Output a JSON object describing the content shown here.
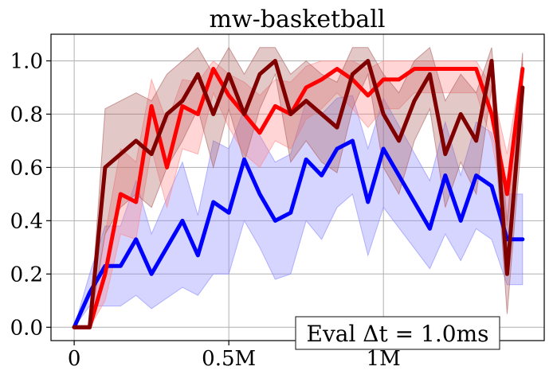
{
  "chart_data": {
    "type": "line",
    "title": "mw-basketball",
    "xlabel": "",
    "ylabel": "",
    "xlim": [
      -75000,
      1520000
    ],
    "ylim": [
      -0.05,
      1.1
    ],
    "xticks": [
      {
        "value": 0,
        "label": "0"
      },
      {
        "value": 500000,
        "label": "0.5M"
      },
      {
        "value": 1000000,
        "label": "1M"
      }
    ],
    "yticks": [
      {
        "value": 0.0,
        "label": "0.0"
      },
      {
        "value": 0.2,
        "label": "0.2"
      },
      {
        "value": 0.4,
        "label": "0.4"
      },
      {
        "value": 0.6,
        "label": "0.6"
      },
      {
        "value": 0.8,
        "label": "0.8"
      },
      {
        "value": 1.0,
        "label": "1.0"
      }
    ],
    "grid": true,
    "annotation": "Eval Δt = 1.0ms",
    "series": [
      {
        "color": "#0000ff",
        "band_color": "#8888ff",
        "x": [
          0,
          50000,
          100000,
          150000,
          200000,
          250000,
          350000,
          400000,
          450000,
          500000,
          550000,
          600000,
          650000,
          700000,
          750000,
          800000,
          850000,
          900000,
          950000,
          1000000,
          1150000,
          1200000,
          1250000,
          1300000,
          1350000,
          1400000,
          1450000
        ],
        "y": [
          0.0,
          0.13,
          0.23,
          0.23,
          0.33,
          0.2,
          0.4,
          0.27,
          0.47,
          0.43,
          0.63,
          0.5,
          0.4,
          0.43,
          0.63,
          0.57,
          0.67,
          0.7,
          0.47,
          0.67,
          0.37,
          0.57,
          0.4,
          0.57,
          0.53,
          0.33,
          0.33
        ],
        "lower": [
          0.0,
          0.08,
          0.08,
          0.08,
          0.12,
          0.07,
          0.15,
          0.12,
          0.2,
          0.2,
          0.4,
          0.3,
          0.18,
          0.2,
          0.4,
          0.33,
          0.45,
          0.5,
          0.27,
          0.45,
          0.22,
          0.35,
          0.25,
          0.37,
          0.33,
          0.16,
          0.16
        ],
        "upper": [
          0.0,
          0.2,
          0.38,
          0.38,
          0.55,
          0.35,
          0.62,
          0.42,
          0.7,
          0.67,
          0.82,
          0.72,
          0.62,
          0.65,
          0.85,
          0.8,
          0.86,
          0.87,
          0.67,
          0.86,
          0.55,
          0.77,
          0.57,
          0.77,
          0.73,
          0.5,
          0.5
        ]
      },
      {
        "color": "#ff0000",
        "band_color": "#ff8888",
        "x": [
          0,
          50000,
          100000,
          150000,
          200000,
          250000,
          300000,
          350000,
          400000,
          450000,
          500000,
          550000,
          600000,
          650000,
          700000,
          750000,
          800000,
          850000,
          900000,
          950000,
          1000000,
          1050000,
          1100000,
          1150000,
          1200000,
          1250000,
          1300000,
          1350000,
          1400000,
          1450000
        ],
        "y": [
          0.0,
          0.0,
          0.2,
          0.5,
          0.47,
          0.83,
          0.6,
          0.83,
          0.8,
          0.97,
          0.87,
          0.8,
          0.73,
          0.83,
          0.8,
          0.9,
          0.93,
          0.97,
          0.93,
          0.87,
          0.93,
          0.93,
          0.97,
          0.97,
          0.97,
          0.97,
          0.97,
          0.8,
          0.5,
          0.97
        ],
        "lower": [
          0.0,
          0.0,
          0.1,
          0.35,
          0.33,
          0.67,
          0.45,
          0.67,
          0.65,
          0.88,
          0.75,
          0.65,
          0.6,
          0.7,
          0.67,
          0.78,
          0.82,
          0.88,
          0.82,
          0.75,
          0.82,
          0.82,
          0.88,
          0.88,
          0.88,
          0.88,
          0.88,
          0.7,
          0.38,
          0.88
        ],
        "upper": [
          0.0,
          0.0,
          0.35,
          0.67,
          0.62,
          0.93,
          0.77,
          0.93,
          0.92,
          1.0,
          0.95,
          0.92,
          0.87,
          0.93,
          0.92,
          0.98,
          1.0,
          1.0,
          1.0,
          0.97,
          1.0,
          1.0,
          1.0,
          1.0,
          1.0,
          1.0,
          1.0,
          0.9,
          0.65,
          1.0
        ]
      },
      {
        "color": "#800000",
        "band_color": "#b06060",
        "x": [
          0,
          50000,
          100000,
          150000,
          200000,
          250000,
          300000,
          350000,
          400000,
          450000,
          500000,
          550000,
          600000,
          650000,
          700000,
          750000,
          800000,
          850000,
          900000,
          950000,
          1000000,
          1050000,
          1100000,
          1150000,
          1200000,
          1250000,
          1300000,
          1350000,
          1400000,
          1450000
        ],
        "y": [
          0.0,
          0.0,
          0.6,
          0.65,
          0.7,
          0.65,
          0.8,
          0.85,
          0.95,
          0.8,
          0.95,
          0.8,
          0.95,
          1.0,
          0.8,
          0.85,
          0.8,
          0.75,
          0.95,
          1.0,
          0.8,
          0.7,
          0.85,
          0.95,
          0.65,
          0.8,
          0.7,
          1.0,
          0.2,
          0.9
        ],
        "lower": [
          0.0,
          0.0,
          0.35,
          0.45,
          0.5,
          0.45,
          0.6,
          0.7,
          0.82,
          0.6,
          0.82,
          0.62,
          0.82,
          0.95,
          0.62,
          0.7,
          0.62,
          0.58,
          0.82,
          0.95,
          0.6,
          0.5,
          0.7,
          0.82,
          0.45,
          0.62,
          0.5,
          0.9,
          0.05,
          0.75
        ],
        "upper": [
          0.0,
          0.0,
          0.82,
          0.85,
          0.88,
          0.85,
          0.95,
          1.0,
          1.05,
          0.95,
          1.05,
          0.95,
          1.05,
          1.05,
          0.95,
          1.0,
          0.95,
          0.92,
          1.05,
          1.05,
          0.95,
          0.88,
          1.0,
          1.05,
          0.85,
          0.95,
          0.88,
          1.05,
          0.4,
          1.03
        ]
      }
    ]
  }
}
